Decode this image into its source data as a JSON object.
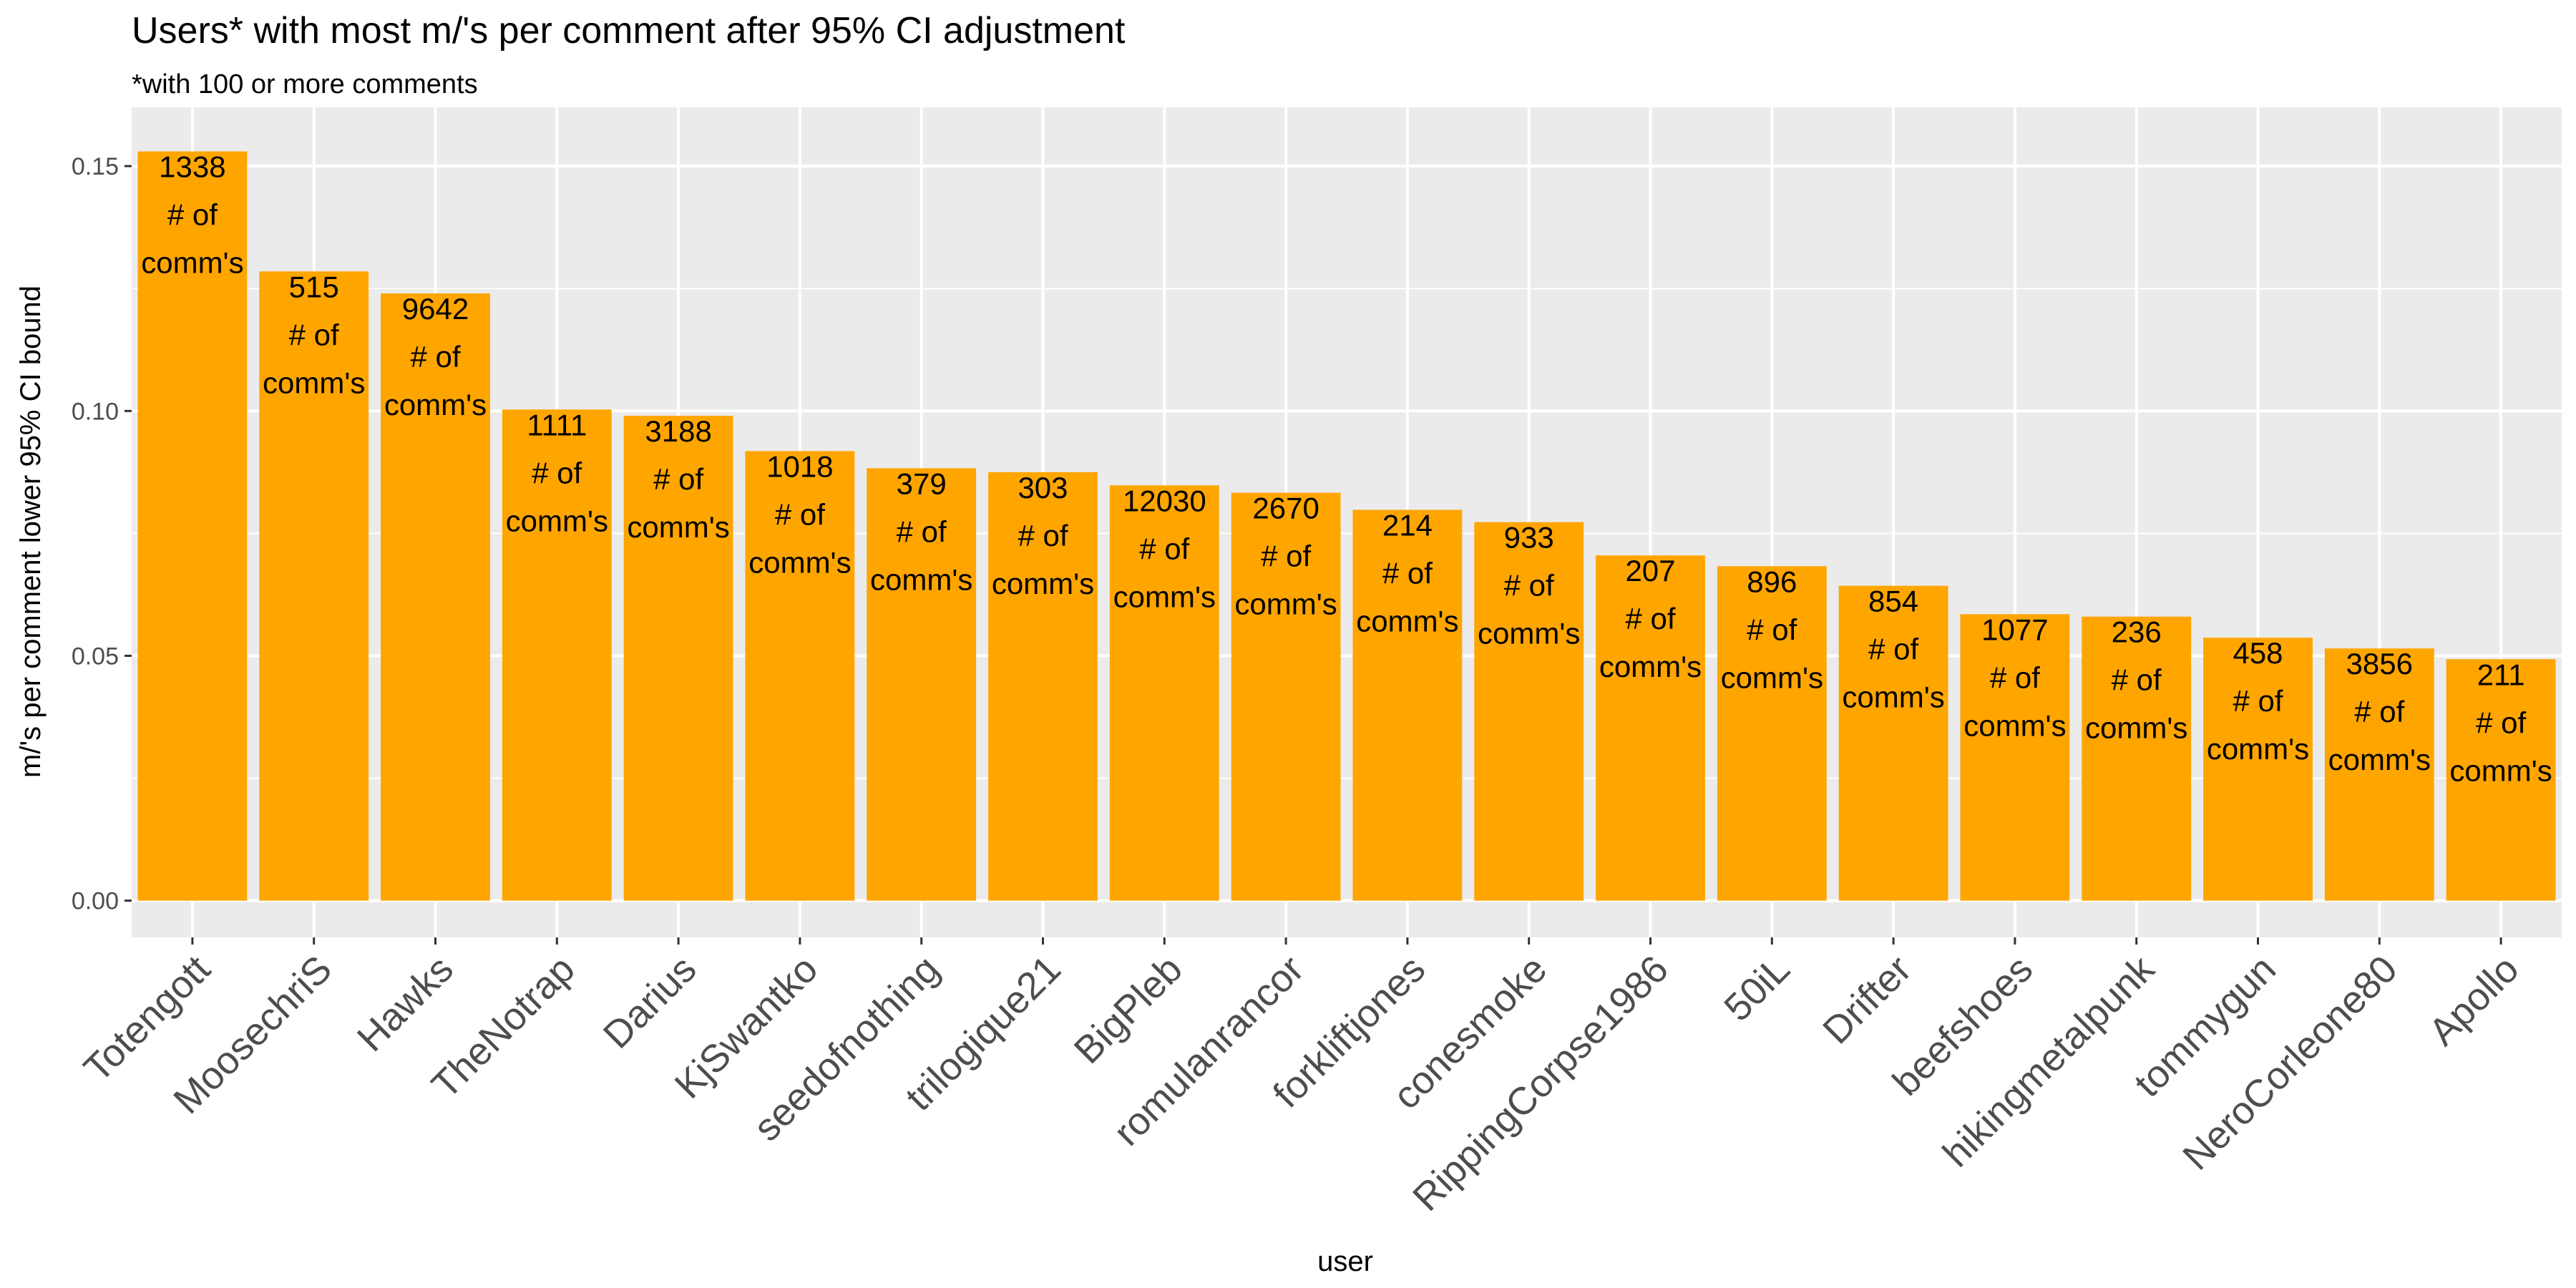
{
  "chart_data": {
    "type": "bar",
    "title": "Users* with most m/'s per comment after 95% CI adjustment",
    "subtitle": "*with 100 or more comments",
    "xlabel": "user",
    "ylabel": "m/'s per comment lower 95% CI bound",
    "ylim": [
      -0.0075,
      0.162
    ],
    "yticks": [
      0.0,
      0.05,
      0.1,
      0.15
    ],
    "ytick_labels": [
      "0.00",
      "0.05",
      "0.10",
      "0.15"
    ],
    "grid": true,
    "bar_color": "#FFA500",
    "panel_background": "#EBEBEB",
    "categories": [
      "Totengott",
      "MoosechriS",
      "Hawks",
      "TheNotrap",
      "Darius",
      "KjSwantko",
      "seedofnothing",
      "trilogique21",
      "BigPleb",
      "romulanrancor",
      "forkliftjones",
      "conesmoke",
      "RippingCorpse1986",
      "50iL",
      "Drifter",
      "beefshoes",
      "hikingmetalpunk",
      "tommygun",
      "NeroCorleone80",
      "Apollo"
    ],
    "values": [
      0.153,
      0.1285,
      0.124,
      0.1003,
      0.099,
      0.0918,
      0.0883,
      0.0875,
      0.0848,
      0.0833,
      0.0798,
      0.0773,
      0.0705,
      0.0683,
      0.0643,
      0.0585,
      0.058,
      0.0537,
      0.0515,
      0.0493
    ],
    "label_counts": [
      "1338",
      "515",
      "9642",
      "1111",
      "3188",
      "1018",
      "379",
      "303",
      "12030",
      "2670",
      "214",
      "933",
      "207",
      "896",
      "854",
      "1077",
      "236",
      "458",
      "3856",
      "211"
    ],
    "label_suffix": [
      "# of",
      "comm's"
    ]
  }
}
